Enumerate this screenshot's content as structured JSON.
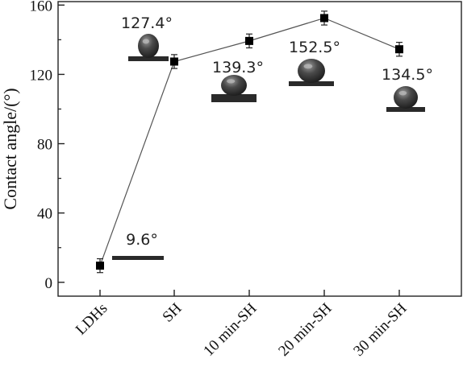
{
  "chart_data": {
    "type": "line",
    "categories": [
      "LDHs",
      "SH",
      "10 min-SH",
      "20 min-SH",
      "30 min-SH"
    ],
    "values": [
      9.6,
      127.4,
      139.3,
      152.5,
      134.5
    ],
    "errors": [
      4,
      4,
      4,
      4,
      4
    ],
    "annotations": [
      "9.6°",
      "127.4°",
      "139.3°",
      "152.5°",
      "134.5°"
    ],
    "title": "",
    "xlabel": "",
    "ylabel": "Contact angle/(°)",
    "ylim": [
      -8,
      162
    ],
    "yticks": [
      0,
      40,
      80,
      120,
      160
    ],
    "grid": false,
    "legend": "none",
    "marker": "square",
    "colors": {
      "line": "#555555",
      "marker": "#000000",
      "droplet": "#3a3a3a",
      "substrate": "#2a2a2a"
    }
  }
}
